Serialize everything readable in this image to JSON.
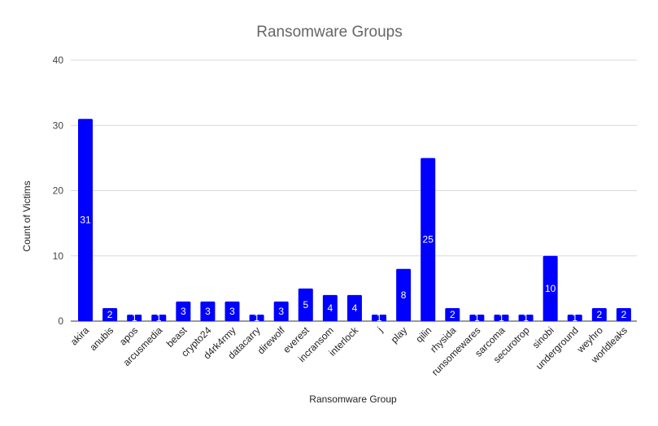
{
  "chart_data": {
    "type": "bar",
    "title": "Ransomware Groups",
    "xlabel": "Ransomware Group",
    "ylabel": "Count of Victims",
    "ylim": [
      0,
      40
    ],
    "yticks": [
      0,
      10,
      20,
      30,
      40
    ],
    "grid": true,
    "bar_color": "#0000ff",
    "label_color": "#ffffff",
    "categories": [
      "akira",
      "anubis",
      "apos",
      "arcusmedia",
      "beast",
      "crypto24",
      "d4rk4rmy",
      "datacarry",
      "direwolf",
      "everest",
      "incransom",
      "interlock",
      "j",
      "play",
      "qilin",
      "rhysida",
      "runsomewares",
      "sarcoma",
      "securotrop",
      "sinobi",
      "underground",
      "weyhro",
      "worldleaks"
    ],
    "values": [
      31,
      2,
      1,
      1,
      3,
      3,
      3,
      1,
      3,
      5,
      4,
      4,
      1,
      8,
      25,
      2,
      1,
      1,
      1,
      10,
      1,
      2,
      2
    ]
  }
}
